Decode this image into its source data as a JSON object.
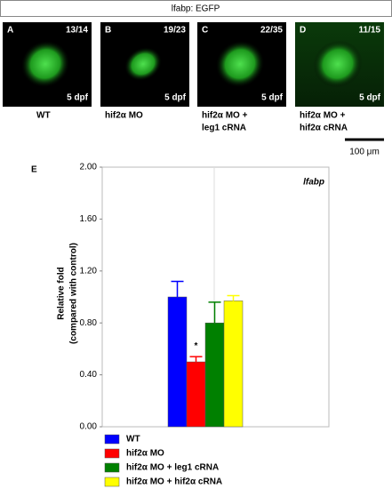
{
  "figure_title": "lfabp: EGFP",
  "panels": [
    {
      "label": "A",
      "count": "13/14",
      "stage": "5 dpf",
      "caption": [
        "WT"
      ]
    },
    {
      "label": "B",
      "count": "19/23",
      "stage": "5 dpf",
      "caption": [
        "hif2α MO"
      ]
    },
    {
      "label": "C",
      "count": "22/35",
      "stage": "5 dpf",
      "caption": [
        "hif2α MO +",
        "leg1 cRNA"
      ]
    },
    {
      "label": "D",
      "count": "11/15",
      "stage": "5 dpf",
      "caption": [
        "hif2α MO +",
        "hif2α cRNA"
      ]
    }
  ],
  "scale_bar": "100 μm",
  "chart_data": {
    "type": "bar",
    "panel_label": "E",
    "title": "lfabp",
    "y_label": [
      "Relative fold",
      "(compared with control)"
    ],
    "categories": [
      null
    ],
    "series": [
      {
        "name": "WT",
        "color": "#0000ff",
        "values": [
          1.0
        ],
        "errors": [
          0.12
        ]
      },
      {
        "name": "hif2α MO",
        "color": "#ff0000",
        "values": [
          0.5
        ],
        "errors": [
          0.04
        ]
      },
      {
        "name": "hif2α MO + leg1 cRNA",
        "color": "#008000",
        "values": [
          0.8
        ],
        "errors": [
          0.16
        ]
      },
      {
        "name": "hif2α MO + hif2α cRNA",
        "color": "#ffff00",
        "values": [
          0.97
        ],
        "errors": [
          0.04
        ]
      }
    ],
    "annotations": [
      {
        "text": "*",
        "series": 1
      }
    ],
    "ylim": [
      0,
      2
    ],
    "yticks": [
      {
        "value": 0,
        "label": "0.00"
      },
      {
        "value": 0.4,
        "label": "0.40"
      },
      {
        "value": 0.8,
        "label": "0.80"
      },
      {
        "value": 1.2,
        "label": "1.20"
      },
      {
        "value": 1.6,
        "label": "1.60"
      },
      {
        "value": 2,
        "label": "2.00"
      }
    ]
  }
}
